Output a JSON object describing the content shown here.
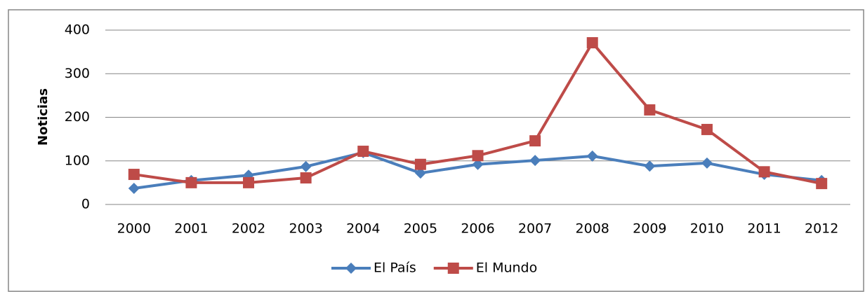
{
  "chart_data": {
    "type": "line",
    "y_label": "Noticias",
    "categories": [
      "2000",
      "2001",
      "2002",
      "2003",
      "2004",
      "2005",
      "2006",
      "2007",
      "2008",
      "2009",
      "2010",
      "2011",
      "2012"
    ],
    "series": [
      {
        "name": "El País",
        "color": "#4a7ebb",
        "marker": "diamond",
        "values": [
          37,
          55,
          67,
          87,
          119,
          72,
          92,
          101,
          111,
          88,
          95,
          69,
          55
        ]
      },
      {
        "name": "El Mundo",
        "color": "#be4b48",
        "marker": "square",
        "values": [
          69,
          50,
          50,
          61,
          122,
          92,
          112,
          146,
          371,
          217,
          172,
          75,
          48
        ]
      }
    ],
    "ylim": [
      0,
      400
    ],
    "yticks": [
      0,
      100,
      200,
      300,
      400
    ],
    "grid": true,
    "legend": "bottom"
  }
}
